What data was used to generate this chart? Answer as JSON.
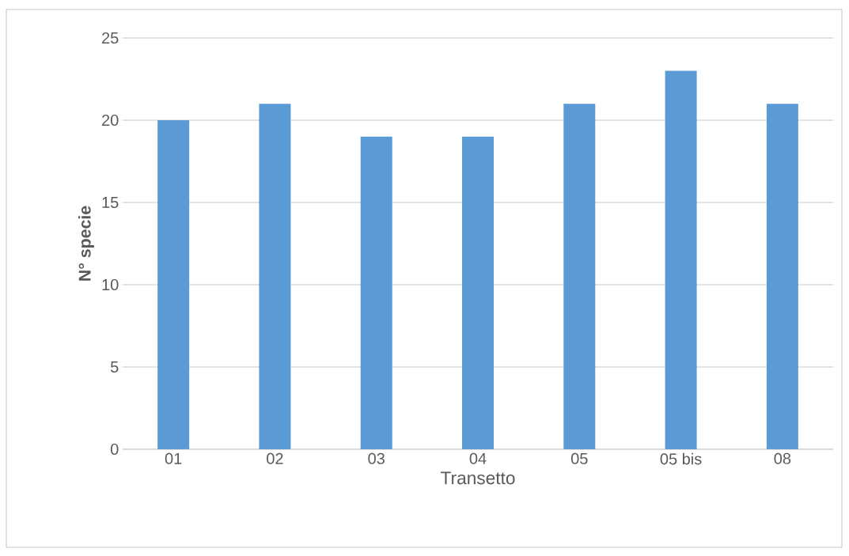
{
  "chart_data": {
    "type": "bar",
    "xlabel": "Transetto",
    "ylabel": "N° specie",
    "categories": [
      "01",
      "02",
      "03",
      "04",
      "05",
      "05 bis",
      "08"
    ],
    "values": [
      20,
      21,
      19,
      19,
      21,
      23,
      21
    ],
    "color": "#5b9bd5",
    "ylim": [
      0,
      25
    ],
    "yticks": [
      0,
      5,
      10,
      15,
      20,
      25
    ],
    "grid": "y"
  }
}
